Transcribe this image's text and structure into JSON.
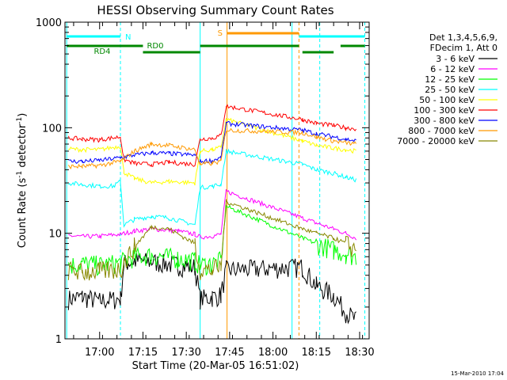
{
  "chart_data": {
    "type": "line",
    "title": "HESSI Observing Summary Count Rates",
    "xlabel": "Start Time (20-Mar-05 16:51:02)",
    "ylabel_main": "Count Rate (s",
    "ylabel_sup1": "-1",
    "ylabel_mid": " detector",
    "ylabel_sup2": "-1",
    "ylabel_end": ")",
    "yscale": "log",
    "ylim": [
      1,
      1000
    ],
    "xlim_minutes": [
      16.8,
      18.555
    ],
    "y_ticks": [
      {
        "value": 1,
        "label": "1"
      },
      {
        "value": 10,
        "label": "10"
      },
      {
        "value": 100,
        "label": "100"
      },
      {
        "value": 1000,
        "label": "1000"
      }
    ],
    "x_ticks": [
      {
        "value": 17.0,
        "label": "17:00"
      },
      {
        "value": 17.25,
        "label": "17:15"
      },
      {
        "value": 17.5,
        "label": "17:30"
      },
      {
        "value": 17.75,
        "label": "17:45"
      },
      {
        "value": 18.0,
        "label": "18:00"
      },
      {
        "value": 18.25,
        "label": "18:15"
      },
      {
        "value": 18.5,
        "label": "18:30"
      }
    ],
    "legend": {
      "placement": "right",
      "header": [
        "Det 1,3,4,5,6,9,",
        "FDecim 1, Att 0"
      ]
    },
    "series": [
      {
        "name": "3 - 6 keV",
        "color": "#000000",
        "values": [
          [
            16.82,
            2.4
          ],
          [
            16.9,
            2.5
          ],
          [
            17.0,
            2.3
          ],
          [
            17.12,
            2.4
          ],
          [
            17.14,
            5.2
          ],
          [
            17.2,
            5.5
          ],
          [
            17.3,
            5.4
          ],
          [
            17.45,
            5.0
          ],
          [
            17.55,
            4.8
          ],
          [
            17.58,
            2.4
          ],
          [
            17.65,
            2.5
          ],
          [
            17.7,
            2.6
          ],
          [
            17.73,
            4.5
          ],
          [
            18.17,
            4.8
          ],
          [
            18.25,
            3.2
          ],
          [
            18.35,
            2.6
          ],
          [
            18.42,
            1.8
          ],
          [
            18.48,
            1.5
          ]
        ]
      },
      {
        "name": "6 - 12 keV",
        "color": "#ff00ff",
        "values": [
          [
            16.82,
            9.5
          ],
          [
            16.9,
            9.3
          ],
          [
            17.0,
            9.4
          ],
          [
            17.12,
            9.8
          ],
          [
            17.2,
            10.5
          ],
          [
            17.3,
            11.0
          ],
          [
            17.45,
            10.5
          ],
          [
            17.55,
            9.8
          ],
          [
            17.58,
            9.2
          ],
          [
            17.65,
            9.4
          ],
          [
            17.7,
            9.8
          ],
          [
            17.73,
            25
          ],
          [
            18.17,
            14
          ],
          [
            18.25,
            12.5
          ],
          [
            18.35,
            11
          ],
          [
            18.42,
            10
          ],
          [
            18.48,
            9
          ]
        ]
      },
      {
        "name": "12 - 25 keV",
        "color": "#00ff00",
        "values": [
          [
            16.82,
            5.0
          ],
          [
            16.9,
            5.2
          ],
          [
            17.0,
            5.0
          ],
          [
            17.12,
            5.3
          ],
          [
            17.2,
            6.0
          ],
          [
            17.3,
            6.2
          ],
          [
            17.45,
            5.8
          ],
          [
            17.55,
            5.5
          ],
          [
            17.58,
            5.0
          ],
          [
            17.65,
            5.2
          ],
          [
            17.7,
            5.5
          ],
          [
            17.73,
            18
          ],
          [
            18.17,
            9
          ],
          [
            18.25,
            8
          ],
          [
            18.35,
            7
          ],
          [
            18.42,
            6.5
          ],
          [
            18.48,
            6
          ]
        ]
      },
      {
        "name": "25 - 50 keV",
        "color": "#00ffff",
        "values": [
          [
            16.82,
            30
          ],
          [
            16.9,
            29
          ],
          [
            17.0,
            28
          ],
          [
            17.08,
            28
          ],
          [
            17.12,
            31
          ],
          [
            17.14,
            12
          ],
          [
            17.2,
            13.5
          ],
          [
            17.3,
            14.5
          ],
          [
            17.4,
            14
          ],
          [
            17.55,
            12
          ],
          [
            17.58,
            27
          ],
          [
            17.65,
            28
          ],
          [
            17.7,
            29
          ],
          [
            17.73,
            60
          ],
          [
            18.17,
            45
          ],
          [
            18.25,
            40
          ],
          [
            18.35,
            37
          ],
          [
            18.42,
            34
          ],
          [
            18.48,
            32
          ]
        ]
      },
      {
        "name": "50 - 100 keV",
        "color": "#ffff00",
        "values": [
          [
            16.82,
            63
          ],
          [
            16.9,
            62
          ],
          [
            17.0,
            62
          ],
          [
            17.12,
            67
          ],
          [
            17.14,
            38
          ],
          [
            17.2,
            33
          ],
          [
            17.3,
            30
          ],
          [
            17.4,
            31
          ],
          [
            17.55,
            30
          ],
          [
            17.58,
            60
          ],
          [
            17.65,
            62
          ],
          [
            17.7,
            65
          ],
          [
            17.73,
            120
          ],
          [
            18.17,
            75
          ],
          [
            18.25,
            68
          ],
          [
            18.35,
            64
          ],
          [
            18.42,
            62
          ],
          [
            18.48,
            60
          ]
        ]
      },
      {
        "name": "100 - 300 keV",
        "color": "#ff0000",
        "values": [
          [
            16.82,
            80
          ],
          [
            16.9,
            78
          ],
          [
            17.0,
            77
          ],
          [
            17.12,
            82
          ],
          [
            17.14,
            50
          ],
          [
            17.2,
            46
          ],
          [
            17.3,
            45
          ],
          [
            17.4,
            47
          ],
          [
            17.55,
            45
          ],
          [
            17.58,
            78
          ],
          [
            17.65,
            80
          ],
          [
            17.7,
            84
          ],
          [
            17.73,
            160
          ],
          [
            18.17,
            120
          ],
          [
            18.25,
            110
          ],
          [
            18.35,
            105
          ],
          [
            18.42,
            100
          ],
          [
            18.48,
            98
          ]
        ]
      },
      {
        "name": "300 - 800 keV",
        "color": "#0000ff",
        "values": [
          [
            16.82,
            48
          ],
          [
            16.9,
            48
          ],
          [
            17.0,
            49
          ],
          [
            17.12,
            52
          ],
          [
            17.2,
            55
          ],
          [
            17.3,
            58
          ],
          [
            17.4,
            57
          ],
          [
            17.55,
            55
          ],
          [
            17.58,
            48
          ],
          [
            17.65,
            49
          ],
          [
            17.7,
            52
          ],
          [
            17.73,
            110
          ],
          [
            18.17,
            95
          ],
          [
            18.25,
            88
          ],
          [
            18.35,
            82
          ],
          [
            18.42,
            78
          ],
          [
            18.48,
            75
          ]
        ]
      },
      {
        "name": "800 - 7000 keV",
        "color": "#ff9900",
        "values": [
          [
            16.82,
            43
          ],
          [
            16.9,
            43
          ],
          [
            17.0,
            44
          ],
          [
            17.12,
            48
          ],
          [
            17.2,
            60
          ],
          [
            17.3,
            70
          ],
          [
            17.4,
            68
          ],
          [
            17.55,
            62
          ],
          [
            17.58,
            45
          ],
          [
            17.65,
            46
          ],
          [
            17.7,
            48
          ],
          [
            17.73,
            95
          ],
          [
            18.17,
            90
          ],
          [
            18.25,
            82
          ],
          [
            18.35,
            75
          ],
          [
            18.42,
            72
          ],
          [
            18.48,
            70
          ]
        ]
      },
      {
        "name": "7000 - 20000 keV",
        "color": "#888800",
        "values": [
          [
            16.82,
            4.5
          ],
          [
            16.9,
            4.3
          ],
          [
            17.0,
            4.4
          ],
          [
            17.12,
            4.6
          ],
          [
            17.2,
            7.5
          ],
          [
            17.3,
            11.5
          ],
          [
            17.4,
            11
          ],
          [
            17.55,
            8
          ],
          [
            17.58,
            4.5
          ],
          [
            17.65,
            4.5
          ],
          [
            17.7,
            4.8
          ],
          [
            17.73,
            20
          ],
          [
            18.17,
            11
          ],
          [
            18.25,
            10
          ],
          [
            18.35,
            9
          ],
          [
            18.42,
            8
          ],
          [
            18.48,
            7
          ]
        ]
      }
    ],
    "annotations": {
      "n_label": "N",
      "s_label": "S",
      "rd0_label": "RD0",
      "rd4_label": "RD4"
    },
    "footer": "15-Mar-2010 17:04"
  }
}
